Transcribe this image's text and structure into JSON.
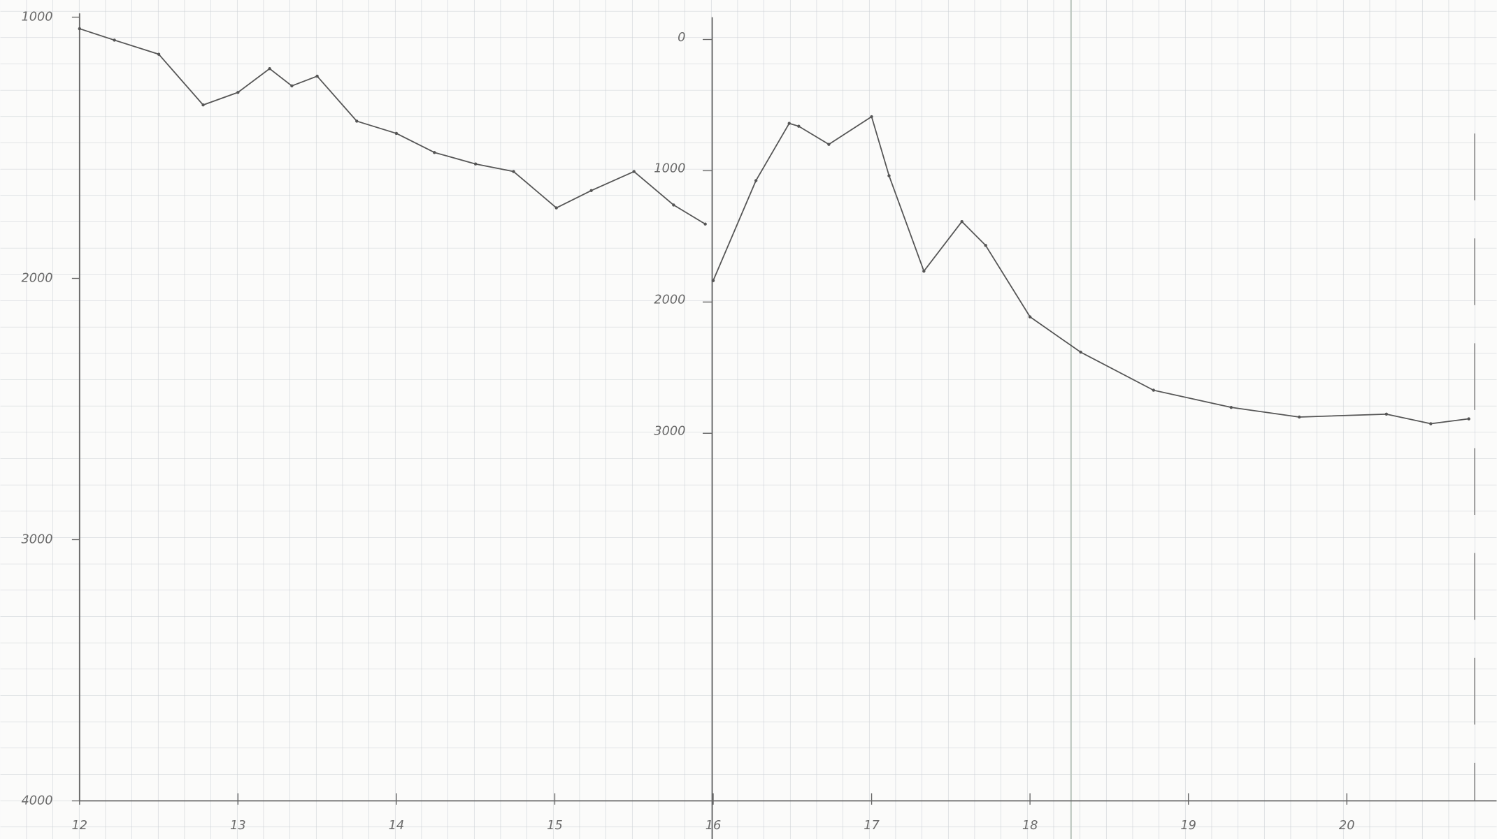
{
  "chart_data": {
    "type": "line",
    "xlim": [
      12,
      20.8
    ],
    "xticks": [
      12,
      13,
      14,
      15,
      16,
      17,
      18,
      19,
      20
    ],
    "ylim": [
      1000,
      4000
    ],
    "yticks": [
      1000,
      2000,
      3000,
      4000
    ],
    "y2lim": [
      -170,
      5800
    ],
    "y2ticks": [
      0,
      1000,
      2000,
      3000
    ],
    "inverted": true,
    "grid": true,
    "series": [
      {
        "color": "#555555",
        "x": [
          12,
          12.22,
          12.5,
          12.78,
          13,
          13.2,
          13.34,
          13.5,
          13.75,
          14,
          14.24,
          14.5,
          14.74,
          15.01,
          15.23,
          15.5,
          15.75,
          15.95
        ],
        "values": [
          1044,
          1088,
          1142,
          1336,
          1288,
          1197,
          1263,
          1226,
          1398,
          1445,
          1518,
          1562,
          1591,
          1730,
          1664,
          1591,
          1719,
          1792
        ]
      },
      {
        "color": "#555555",
        "axis": "y2",
        "x": [
          16,
          16.27,
          16.48,
          16.54,
          16.73,
          17,
          17.11,
          17.33,
          17.57,
          17.72,
          18,
          18.32,
          18.78,
          19.27,
          19.7,
          20.25,
          20.53,
          20.77
        ],
        "values": [
          1837,
          1075,
          639,
          661,
          799,
          588,
          1038,
          1765,
          1387,
          1569,
          2113,
          2382,
          2672,
          2803,
          2876,
          2854,
          2927,
          2890
        ]
      }
    ]
  }
}
